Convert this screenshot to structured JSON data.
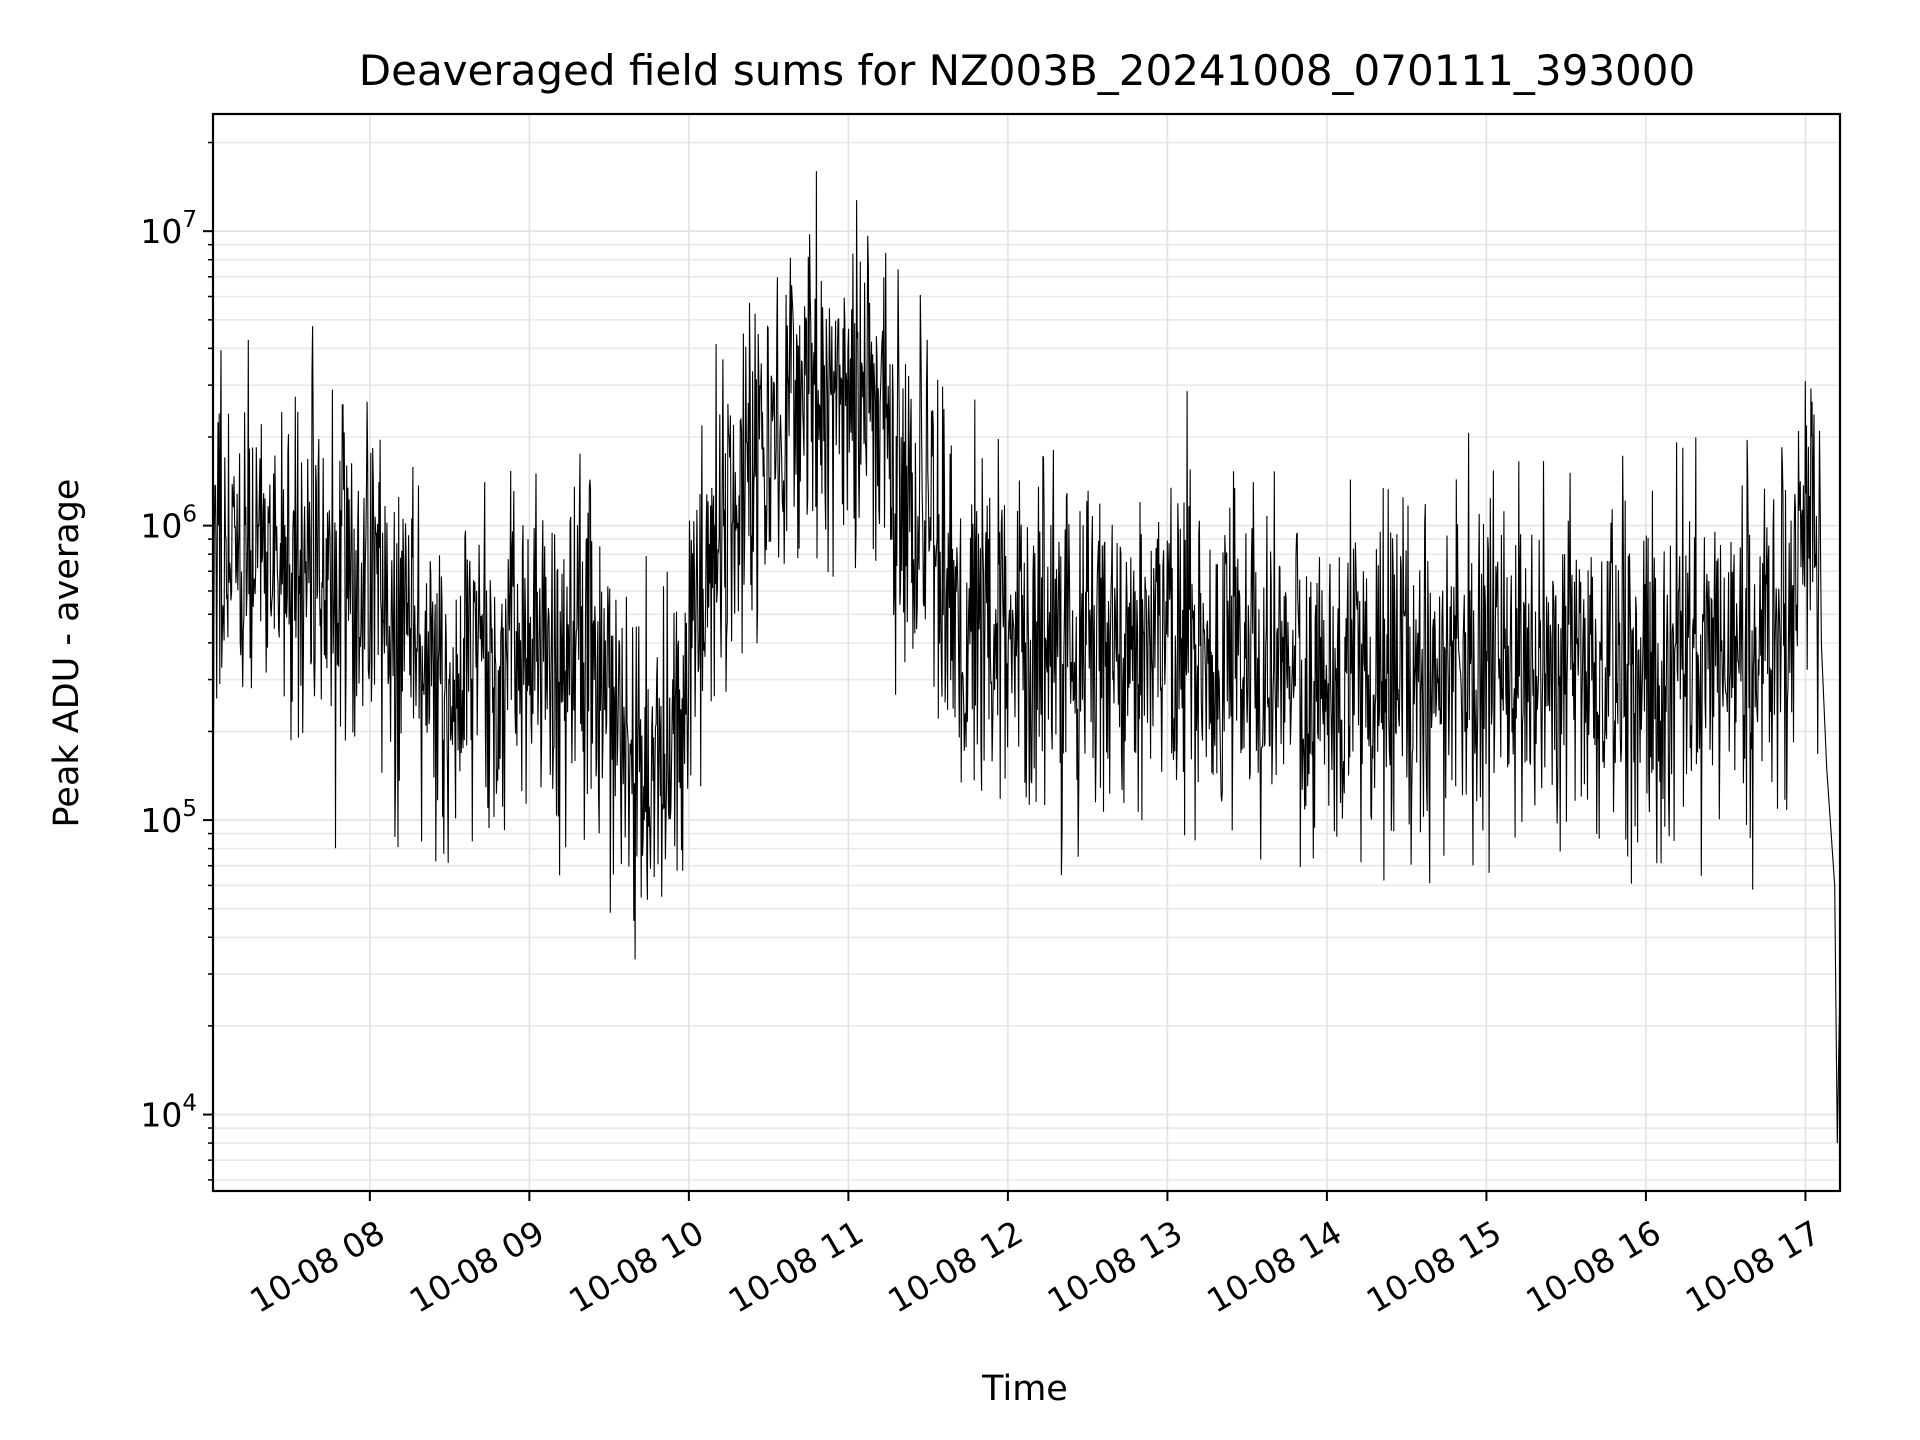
{
  "chart_data": {
    "type": "line",
    "title": "Deaveraged field sums for NZ003B_20241008_070111_393000",
    "xlabel": "Time",
    "ylabel": "Peak ADU - average",
    "yscale": "log",
    "xlim": [
      "2024-10-08T07:01",
      "2024-10-08T17:13"
    ],
    "ylim": [
      5500,
      25000000
    ],
    "grid": true,
    "grid_minor": true,
    "line_color": "#000000",
    "x_ticks": [
      {
        "value": "2024-10-08T08:00",
        "label": "10-08 08"
      },
      {
        "value": "2024-10-08T09:00",
        "label": "10-08 09"
      },
      {
        "value": "2024-10-08T10:00",
        "label": "10-08 10"
      },
      {
        "value": "2024-10-08T11:00",
        "label": "10-08 11"
      },
      {
        "value": "2024-10-08T12:00",
        "label": "10-08 12"
      },
      {
        "value": "2024-10-08T13:00",
        "label": "10-08 13"
      },
      {
        "value": "2024-10-08T14:00",
        "label": "10-08 14"
      },
      {
        "value": "2024-10-08T15:00",
        "label": "10-08 15"
      },
      {
        "value": "2024-10-08T16:00",
        "label": "10-08 16"
      },
      {
        "value": "2024-10-08T17:00",
        "label": "10-08 17"
      }
    ],
    "y_ticks": [
      {
        "value": 10000,
        "base": "10",
        "exp": "4"
      },
      {
        "value": 100000,
        "base": "10",
        "exp": "5"
      },
      {
        "value": 1000000,
        "base": "10",
        "exp": "6"
      },
      {
        "value": 10000000,
        "base": "10",
        "exp": "7"
      }
    ],
    "trend": [
      {
        "t": "07:01",
        "v": 700000
      },
      {
        "t": "07:20",
        "v": 800000
      },
      {
        "t": "07:40",
        "v": 750000
      },
      {
        "t": "08:00",
        "v": 650000
      },
      {
        "t": "08:15",
        "v": 450000
      },
      {
        "t": "08:30",
        "v": 250000
      },
      {
        "t": "08:45",
        "v": 350000
      },
      {
        "t": "09:00",
        "v": 400000
      },
      {
        "t": "09:10",
        "v": 250000
      },
      {
        "t": "09:25",
        "v": 450000
      },
      {
        "t": "09:40",
        "v": 130000
      },
      {
        "t": "09:55",
        "v": 200000
      },
      {
        "t": "10:10",
        "v": 900000
      },
      {
        "t": "10:30",
        "v": 2200000
      },
      {
        "t": "10:50",
        "v": 3000000
      },
      {
        "t": "11:10",
        "v": 2500000
      },
      {
        "t": "11:25",
        "v": 1400000
      },
      {
        "t": "11:40",
        "v": 550000
      },
      {
        "t": "12:00",
        "v": 400000
      },
      {
        "t": "12:30",
        "v": 380000
      },
      {
        "t": "13:00",
        "v": 420000
      },
      {
        "t": "13:30",
        "v": 330000
      },
      {
        "t": "14:00",
        "v": 300000
      },
      {
        "t": "14:30",
        "v": 330000
      },
      {
        "t": "15:00",
        "v": 340000
      },
      {
        "t": "15:30",
        "v": 330000
      },
      {
        "t": "16:00",
        "v": 320000
      },
      {
        "t": "16:30",
        "v": 330000
      },
      {
        "t": "16:55",
        "v": 420000
      },
      {
        "t": "17:02",
        "v": 1200000
      },
      {
        "t": "17:06",
        "v": 700000
      },
      {
        "t": "17:08",
        "v": 150000
      },
      {
        "t": "17:11",
        "v": 60000
      },
      {
        "t": "17:12",
        "v": 8000
      },
      {
        "t": "17:13",
        "v": 30000
      }
    ],
    "noise_sigma": 0.3,
    "samples": 2600
  }
}
